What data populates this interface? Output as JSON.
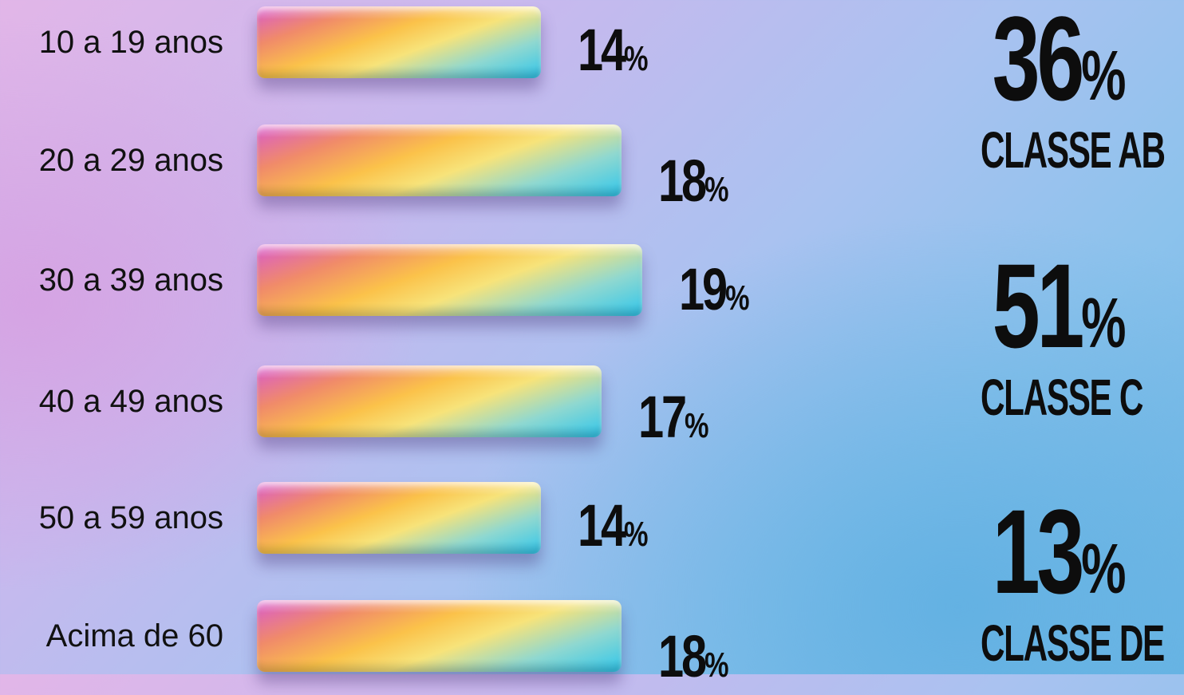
{
  "chart_data": {
    "type": "bar",
    "orientation": "horizontal",
    "categories": [
      "10 a 19 anos",
      "20 a 29 anos",
      "30 a 39 anos",
      "40 a 49 anos",
      "50 a 59 anos",
      "Acima de 60"
    ],
    "values": [
      14,
      18,
      19,
      17,
      14,
      18
    ],
    "value_labels": [
      "14",
      "18",
      "19",
      "17",
      "14",
      "18"
    ],
    "unit": "%",
    "title": "",
    "xlabel": "",
    "ylabel": "",
    "grid": false
  },
  "classes": [
    {
      "value": "36",
      "unit": "%",
      "label": "CLASSE AB"
    },
    {
      "value": "51",
      "unit": "%",
      "label": "CLASSE C"
    },
    {
      "value": "13",
      "unit": "%",
      "label": "CLASSE DE"
    }
  ],
  "colors": {
    "bar_gradient": [
      "#d85ad0",
      "#f08a6a",
      "#fbc24a",
      "#f7e37a",
      "#8fd8d0",
      "#2fc6ec"
    ],
    "text": "#0d0d0d"
  }
}
